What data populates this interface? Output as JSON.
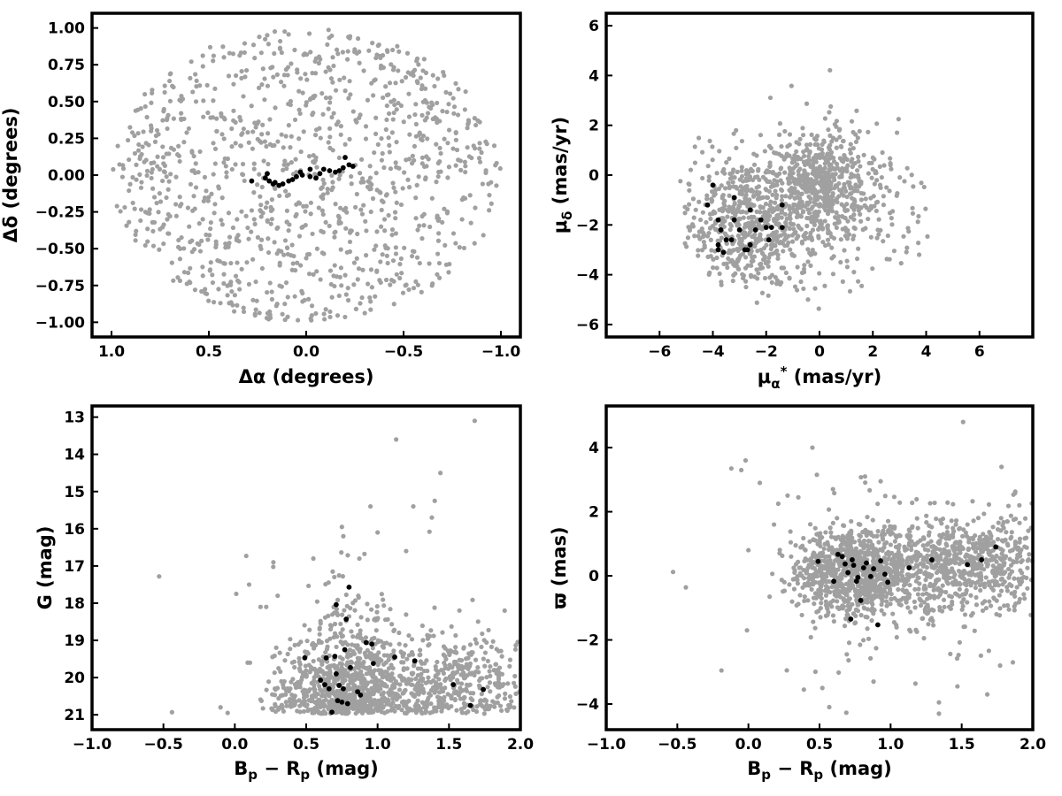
{
  "colors": {
    "field": "#a0a0a0",
    "members": "#000000"
  },
  "chart_data": [
    {
      "type": "scatter",
      "xlabel": "Δα (degrees)",
      "ylabel": "Δδ (degrees)",
      "xlim": [
        1.1,
        -1.1
      ],
      "ylim": [
        -1.1,
        1.1
      ],
      "xticks": [
        1.0,
        0.5,
        0.0,
        -0.5,
        -1.0
      ],
      "xtick_labels": [
        "1.0",
        "0.5",
        "0.0",
        "−0.5",
        "−1.0"
      ],
      "yticks": [
        1.0,
        0.75,
        0.5,
        0.25,
        0.0,
        -0.25,
        -0.5,
        -0.75,
        -1.0
      ],
      "ytick_labels": [
        "1.00",
        "0.75",
        "0.50",
        "0.25",
        "0.00",
        "−0.25",
        "−0.50",
        "−0.75",
        "−1.00"
      ],
      "grid": false,
      "field_distribution": {
        "shape": "disk",
        "radius": 1.0,
        "count": 1100
      },
      "members": [
        [
          0.28,
          -0.04
        ],
        [
          0.21,
          -0.02
        ],
        [
          0.19,
          -0.04
        ],
        [
          0.17,
          -0.06
        ],
        [
          0.16,
          -0.05
        ],
        [
          0.14,
          -0.07
        ],
        [
          0.12,
          -0.06
        ],
        [
          0.09,
          -0.04
        ],
        [
          0.07,
          -0.03
        ],
        [
          0.05,
          -0.01
        ],
        [
          0.03,
          0.02
        ],
        [
          0.02,
          0.0
        ],
        [
          -0.02,
          0.04
        ],
        [
          -0.05,
          -0.02
        ],
        [
          -0.07,
          0.01
        ],
        [
          -0.09,
          0.04
        ],
        [
          -0.12,
          0.03
        ],
        [
          -0.15,
          0.02
        ],
        [
          -0.17,
          0.03
        ],
        [
          -0.19,
          0.05
        ],
        [
          -0.2,
          0.12
        ],
        [
          -0.22,
          0.07
        ],
        [
          -0.24,
          0.06
        ],
        [
          0.2,
          0.01
        ],
        [
          -0.02,
          -0.01
        ]
      ]
    },
    {
      "type": "scatter",
      "xlabel": "μα* (mas/yr)",
      "ylabel": "μδ (mas/yr)",
      "xlim": [
        -8,
        8
      ],
      "ylim": [
        -6.5,
        6.5
      ],
      "xticks": [
        -6,
        -4,
        -2,
        0,
        2,
        4,
        6
      ],
      "xtick_labels": [
        "−6",
        "−4",
        "−2",
        "0",
        "2",
        "4",
        "6"
      ],
      "yticks": [
        6,
        4,
        2,
        0,
        -2,
        -4,
        -6
      ],
      "ytick_labels": [
        "6",
        "4",
        "2",
        "0",
        "−2",
        "−4",
        "−6"
      ],
      "grid": false,
      "field_distribution": {
        "components": [
          {
            "center": [
              0,
              -0.3
            ],
            "spread": [
              0.9,
              1.0
            ],
            "count": 450
          },
          {
            "center": [
              -2.6,
              -2.0
            ],
            "spread": [
              1.3,
              1.4
            ],
            "count": 700
          },
          {
            "center": [
              1.2,
              -1.0
            ],
            "spread": [
              1.6,
              2.1
            ],
            "count": 220
          }
        ]
      },
      "members": [
        [
          -4.2,
          -1.2
        ],
        [
          -4.0,
          -0.4
        ],
        [
          -3.8,
          -1.8
        ],
        [
          -3.8,
          -2.8
        ],
        [
          -3.7,
          -2.2
        ],
        [
          -3.5,
          -2.6
        ],
        [
          -3.3,
          -2.6
        ],
        [
          -3.2,
          -1.8
        ],
        [
          -3.2,
          -0.9
        ],
        [
          -3.0,
          -2.2
        ],
        [
          -2.8,
          -3.0
        ],
        [
          -2.7,
          -3.0
        ],
        [
          -2.6,
          -1.4
        ],
        [
          -2.6,
          -2.8
        ],
        [
          -2.4,
          -2.2
        ],
        [
          -2.2,
          -1.8
        ],
        [
          -2.0,
          -2.1
        ],
        [
          -1.9,
          -2.6
        ],
        [
          -1.8,
          -2.1
        ],
        [
          -1.4,
          -1.2
        ],
        [
          -1.4,
          -2.1
        ],
        [
          -3.8,
          -3.0
        ],
        [
          -3.6,
          -3.1
        ]
      ]
    },
    {
      "type": "scatter",
      "xlabel": "Bp − Rp (mag)",
      "ylabel": "G (mag)",
      "xlim": [
        -1.0,
        2.0
      ],
      "ylim": [
        21.4,
        12.7
      ],
      "xticks": [
        -1.0,
        -0.5,
        0.0,
        0.5,
        1.0,
        1.5,
        2.0
      ],
      "xtick_labels": [
        "−1.0",
        "−0.5",
        "0.0",
        "0.5",
        "1.0",
        "1.5",
        "2.0"
      ],
      "yticks": [
        21,
        20,
        19,
        18,
        17,
        16,
        15,
        14,
        13
      ],
      "ytick_labels": [
        "21",
        "20",
        "19",
        "18",
        "17",
        "16",
        "15",
        "14",
        "13"
      ],
      "grid": false,
      "field_distribution": {
        "components": [
          {
            "center": [
              0.72,
              20.4
            ],
            "spread": [
              0.22,
              0.6
            ],
            "count": 650
          },
          {
            "center": [
              1.45,
              20.1
            ],
            "spread": [
              0.35,
              0.7
            ],
            "count": 550
          },
          {
            "center": [
              0.8,
              18.8
            ],
            "spread": [
              0.22,
              0.9
            ],
            "count": 150
          }
        ],
        "outliers": [
          [
            -0.53,
            17.28
          ],
          [
            -0.44,
            20.93
          ],
          [
            0.01,
            17.75
          ],
          [
            0.08,
            16.73
          ],
          [
            0.09,
            19.6
          ],
          [
            0.1,
            17.5
          ],
          [
            0.18,
            18.1
          ],
          [
            0.22,
            18.1
          ],
          [
            0.27,
            16.9
          ],
          [
            0.3,
            17.8
          ],
          [
            0.55,
            16.8
          ],
          [
            0.75,
            15.95
          ],
          [
            0.76,
            16.2
          ],
          [
            0.95,
            15.4
          ],
          [
            1.0,
            16.1
          ],
          [
            1.13,
            13.6
          ],
          [
            1.2,
            16.6
          ],
          [
            1.25,
            15.4
          ],
          [
            1.38,
            15.7
          ],
          [
            1.4,
            15.25
          ],
          [
            1.44,
            14.5
          ],
          [
            1.68,
            13.1
          ],
          [
            1.89,
            18.2
          ],
          [
            -0.1,
            20.8
          ],
          [
            -0.05,
            20.95
          ]
        ]
      },
      "members": [
        [
          0.49,
          19.47
        ],
        [
          0.6,
          20.07
        ],
        [
          0.63,
          20.19
        ],
        [
          0.64,
          19.47
        ],
        [
          0.66,
          20.3
        ],
        [
          0.68,
          20.93
        ],
        [
          0.7,
          19.43
        ],
        [
          0.71,
          18.04
        ],
        [
          0.71,
          19.9
        ],
        [
          0.72,
          20.62
        ],
        [
          0.73,
          20.21
        ],
        [
          0.75,
          20.66
        ],
        [
          0.76,
          20.3
        ],
        [
          0.77,
          19.25
        ],
        [
          0.78,
          18.43
        ],
        [
          0.79,
          20.7
        ],
        [
          0.8,
          17.57
        ],
        [
          0.81,
          19.73
        ],
        [
          0.86,
          20.38
        ],
        [
          0.88,
          20.47
        ],
        [
          0.92,
          19.06
        ],
        [
          0.96,
          19.1
        ],
        [
          0.97,
          19.62
        ],
        [
          1.12,
          19.45
        ],
        [
          1.26,
          19.55
        ],
        [
          1.53,
          20.19
        ],
        [
          1.65,
          20.75
        ],
        [
          1.74,
          20.32
        ]
      ]
    },
    {
      "type": "scatter",
      "xlabel": "Bp − Rp (mag)",
      "ylabel": "ϖ (mas)",
      "xlim": [
        -1.0,
        2.0
      ],
      "ylim": [
        -4.8,
        5.3
      ],
      "xticks": [
        -1.0,
        -0.5,
        0.0,
        0.5,
        1.0,
        1.5,
        2.0
      ],
      "xtick_labels": [
        "−1.0",
        "−0.5",
        "0.0",
        "0.5",
        "1.0",
        "1.5",
        "2.0"
      ],
      "yticks": [
        4,
        2,
        0,
        -2,
        -4
      ],
      "ytick_labels": [
        "4",
        "2",
        "0",
        "−2",
        "−4"
      ],
      "grid": false,
      "field_distribution": {
        "components": [
          {
            "center": [
              0.75,
              0.1
            ],
            "spread": [
              0.2,
              0.65
            ],
            "count": 900
          },
          {
            "center": [
              1.55,
              0.4
            ],
            "spread": [
              0.32,
              0.75
            ],
            "count": 700
          },
          {
            "center": [
              1.0,
              -0.4
            ],
            "spread": [
              0.35,
              1.5
            ],
            "count": 150
          }
        ],
        "outliers": [
          [
            -0.53,
            0.12
          ],
          [
            -0.44,
            -0.36
          ],
          [
            -0.12,
            3.35
          ],
          [
            -0.02,
            3.6
          ],
          [
            -0.05,
            3.3
          ],
          [
            0.0,
            0.8
          ],
          [
            -0.01,
            -1.7
          ],
          [
            0.08,
            2.9
          ],
          [
            0.21,
            2.25
          ],
          [
            0.18,
            1.6
          ],
          [
            0.27,
            -2.95
          ],
          [
            0.39,
            -3.55
          ],
          [
            0.52,
            -3.5
          ],
          [
            0.45,
            4.0
          ],
          [
            0.82,
            3.1
          ],
          [
            0.93,
            2.95
          ],
          [
            0.88,
            -3.3
          ],
          [
            1.34,
            -4.3
          ],
          [
            1.34,
            -3.95
          ],
          [
            1.51,
            4.8
          ],
          [
            1.78,
            3.4
          ],
          [
            1.86,
            -2.7
          ],
          [
            1.77,
            -2.8
          ],
          [
            1.68,
            -3.7
          ],
          [
            1.47,
            -3.45
          ]
        ]
      },
      "members": [
        [
          0.49,
          0.45
        ],
        [
          0.6,
          -0.17
        ],
        [
          0.63,
          0.67
        ],
        [
          0.66,
          0.6
        ],
        [
          0.68,
          0.37
        ],
        [
          0.7,
          0.1
        ],
        [
          0.72,
          -1.35
        ],
        [
          0.73,
          0.5
        ],
        [
          0.74,
          0.33
        ],
        [
          0.76,
          -0.17
        ],
        [
          0.77,
          -0.05
        ],
        [
          0.79,
          -0.77
        ],
        [
          0.81,
          0.25
        ],
        [
          0.83,
          0.4
        ],
        [
          0.86,
          -0.02
        ],
        [
          0.88,
          0.22
        ],
        [
          0.91,
          -1.53
        ],
        [
          0.93,
          0.47
        ],
        [
          0.96,
          0.05
        ],
        [
          0.98,
          -0.2
        ],
        [
          1.13,
          0.25
        ],
        [
          1.29,
          0.5
        ],
        [
          1.54,
          0.35
        ],
        [
          1.64,
          0.5
        ],
        [
          1.74,
          0.9
        ]
      ]
    }
  ]
}
